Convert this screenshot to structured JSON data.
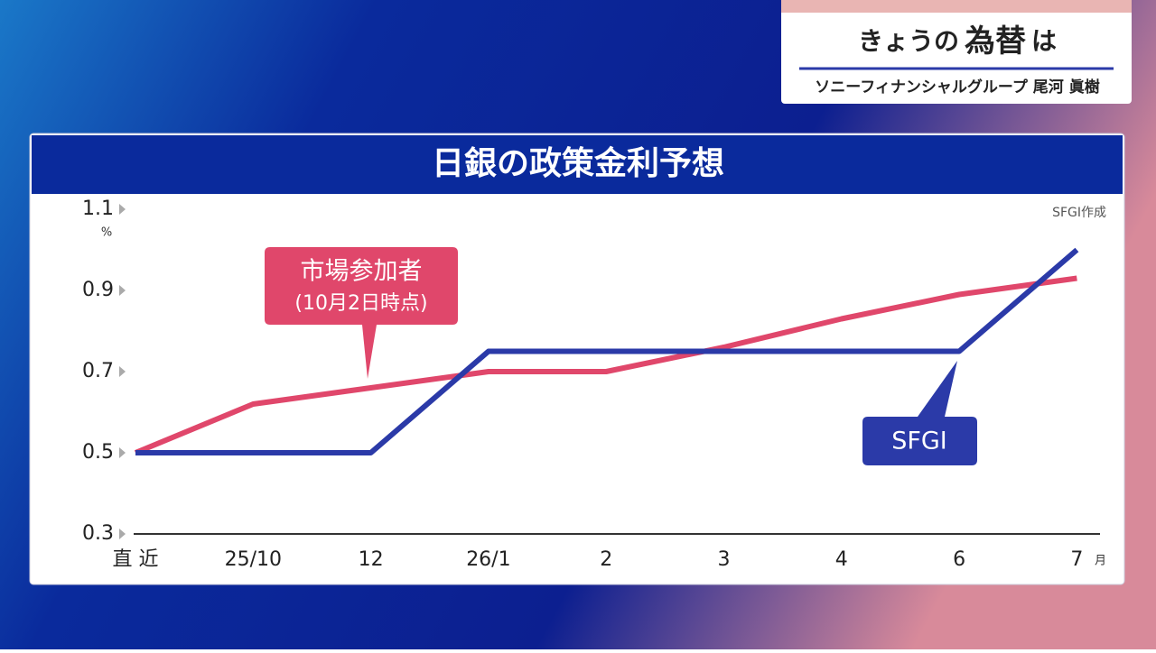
{
  "header": {
    "topic_small": "きょうの",
    "topic_big": "為替",
    "topic_end": "は",
    "presenter": "ソニーフィナンシャルグループ 尾河 眞樹"
  },
  "chart_data": {
    "type": "line",
    "title": "日銀の政策金利予想",
    "source": "SFGI作成",
    "y_unit": "%",
    "x_unit": "月",
    "categories": [
      "直 近",
      "25/10",
      "12",
      "26/1",
      "2",
      "3",
      "4",
      "6",
      "7"
    ],
    "series": [
      {
        "name": "市場参加者",
        "note": "(10月2日時点)",
        "color": "#e0476b",
        "values": [
          0.5,
          0.62,
          0.66,
          0.7,
          0.7,
          0.76,
          0.83,
          0.89,
          0.93
        ]
      },
      {
        "name": "SFGI",
        "color": "#2b3aa8",
        "values": [
          0.5,
          0.5,
          0.5,
          0.75,
          0.75,
          0.75,
          0.75,
          0.75,
          1.0
        ]
      }
    ],
    "ylim": [
      0.3,
      1.1
    ],
    "yticks": [
      0.3,
      0.5,
      0.7,
      0.9,
      1.1
    ]
  }
}
